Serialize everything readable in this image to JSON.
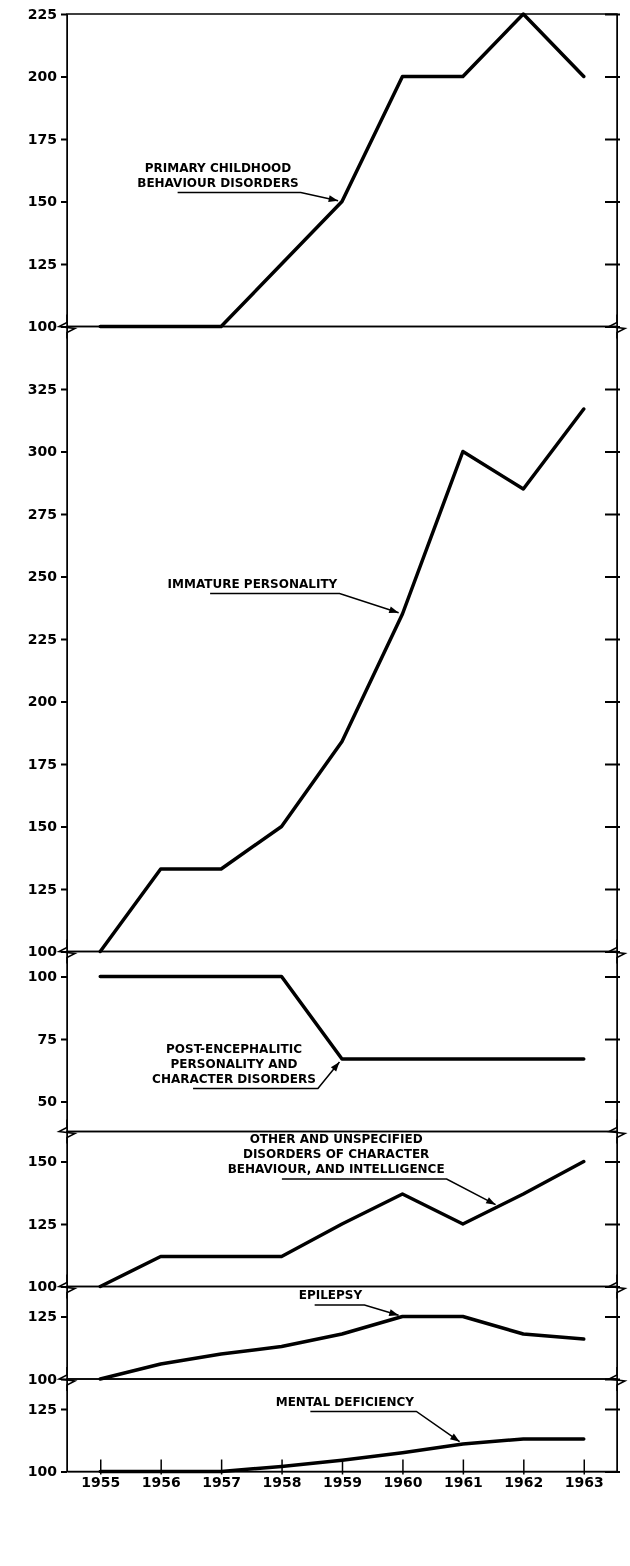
{
  "chart_data": [
    {
      "type": "line",
      "x": [
        1955,
        1956,
        1957,
        1958,
        1959,
        1960,
        1961,
        1962,
        1963
      ],
      "xlim": [
        1954.45,
        1963.55
      ],
      "ylim": [
        100,
        225
      ],
      "yticks": [
        100,
        125,
        150,
        175,
        200,
        225
      ],
      "tick_labels": "y",
      "series": [
        {
          "color": "#000000",
          "values": [
            100,
            100,
            100,
            125,
            150,
            200,
            200,
            225,
            200
          ]
        }
      ],
      "annotations": [
        {
          "text": "PRIMARY CHILDHOOD\nBEHAVIOUR DISORDERS",
          "x": 1959,
          "y": 150
        }
      ]
    },
    {
      "type": "line",
      "x": [
        1955,
        1956,
        1957,
        1958,
        1959,
        1960,
        1961,
        1962,
        1963
      ],
      "xlim": [
        1954.45,
        1963.55
      ],
      "ylim": [
        100,
        350
      ],
      "yticks": [
        100,
        125,
        150,
        175,
        200,
        225,
        250,
        275,
        300,
        325
      ],
      "tick_labels": "y",
      "series": [
        {
          "color": "#000000",
          "values": [
            100,
            133,
            133,
            150,
            184,
            235,
            300,
            285,
            317
          ]
        }
      ],
      "annotations": [
        {
          "text": "IMMATURE PERSONALITY",
          "x": 1960,
          "y": 235
        }
      ]
    },
    {
      "type": "line",
      "x": [
        1955,
        1956,
        1957,
        1958,
        1959,
        1960,
        1961,
        1962,
        1963
      ],
      "xlim": [
        1954.45,
        1963.55
      ],
      "ylim": [
        38,
        110
      ],
      "yticks": [
        50,
        75,
        100
      ],
      "tick_labels": "y",
      "series": [
        {
          "color": "#000000",
          "values": [
            100,
            100,
            100,
            100,
            67,
            67,
            67,
            67,
            67
          ]
        }
      ],
      "annotations": [
        {
          "text": "POST-ENCEPHALITIC\nPERSONALITY AND\nCHARACTER DISORDERS",
          "x": 1959,
          "y": 67
        }
      ]
    },
    {
      "type": "line",
      "x": [
        1955,
        1956,
        1957,
        1958,
        1959,
        1960,
        1961,
        1962,
        1963
      ],
      "xlim": [
        1954.45,
        1963.55
      ],
      "ylim": [
        100,
        162
      ],
      "yticks": [
        100,
        125,
        150
      ],
      "tick_labels": "y",
      "series": [
        {
          "color": "#000000",
          "values": [
            100,
            112,
            112,
            112,
            125,
            137,
            125,
            137,
            150
          ]
        }
      ],
      "annotations": [
        {
          "text": "OTHER AND UNSPECIFIED\nDISORDERS OF CHARACTER\nBEHAVIOUR, AND INTELLIGENCE",
          "x": 1961.6,
          "y": 132
        }
      ]
    },
    {
      "type": "line",
      "x": [
        1955,
        1956,
        1957,
        1958,
        1959,
        1960,
        1961,
        1962,
        1963
      ],
      "xlim": [
        1954.45,
        1963.55
      ],
      "ylim": [
        100,
        137
      ],
      "yticks": [
        100,
        125
      ],
      "tick_labels": "y",
      "series": [
        {
          "color": "#000000",
          "values": [
            100,
            106,
            110,
            113,
            118,
            125,
            125,
            118,
            116
          ]
        }
      ],
      "annotations": [
        {
          "text": "EPILEPSY",
          "x": 1960,
          "y": 125
        }
      ]
    },
    {
      "type": "line",
      "x": [
        1955,
        1956,
        1957,
        1958,
        1959,
        1960,
        1961,
        1962,
        1963
      ],
      "xlim": [
        1954.45,
        1963.55
      ],
      "xticks": [
        1955,
        1956,
        1957,
        1958,
        1959,
        1960,
        1961,
        1962,
        1963
      ],
      "ylim": [
        100,
        137
      ],
      "yticks": [
        100,
        125
      ],
      "series": [
        {
          "color": "#000000",
          "values": [
            100,
            100,
            100,
            102,
            104.5,
            107.5,
            111,
            113,
            113
          ]
        }
      ],
      "annotations": [
        {
          "text": "MENTAL DEFICIENCY",
          "x": 1961,
          "y": 111
        }
      ]
    }
  ]
}
